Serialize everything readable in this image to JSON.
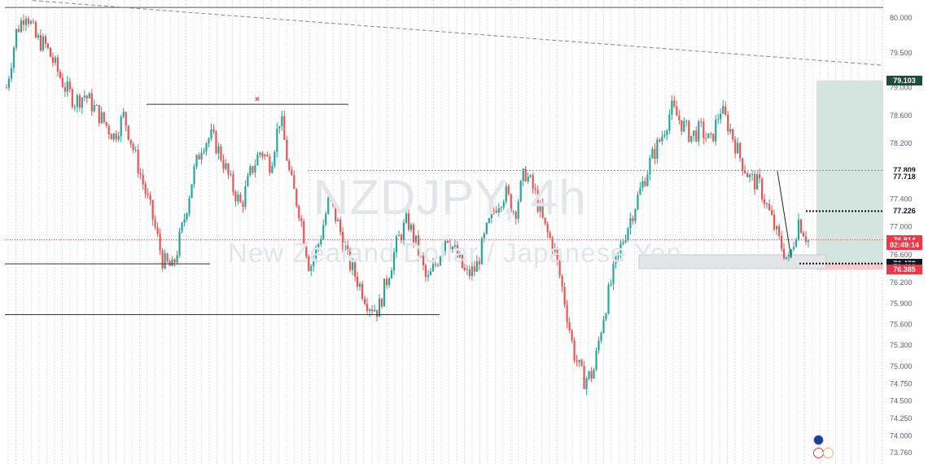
{
  "watermark": {
    "symbol": "NZDJPY, 4h",
    "description": "New Zealand Dollar / Japanese Yen"
  },
  "chart_data": {
    "type": "candlestick",
    "symbol": "NZDJPY",
    "timeframe": "4h",
    "ylim": [
      73.76,
      80.05
    ],
    "y_ticks": [
      "80.000",
      "79.500",
      "79.000",
      "78.600",
      "78.200",
      "77.800",
      "77.400",
      "77.000",
      "76.600",
      "76.200",
      "75.900",
      "75.600",
      "75.300",
      "75.000",
      "74.750",
      "74.500",
      "74.250",
      "74.000",
      "73.760"
    ],
    "price_path": [
      79.0,
      79.8,
      80.1,
      79.7,
      79.6,
      79.3,
      79.0,
      78.8,
      78.9,
      78.7,
      78.5,
      78.3,
      78.6,
      78.1,
      77.6,
      77.1,
      76.5,
      76.4,
      77.0,
      77.7,
      78.2,
      78.3,
      78.0,
      77.6,
      77.3,
      77.8,
      78.1,
      77.9,
      78.6,
      77.7,
      77.2,
      76.4,
      76.8,
      77.4,
      77.0,
      76.5,
      76.2,
      75.9,
      75.8,
      76.3,
      76.8,
      77.1,
      76.7,
      76.2,
      76.5,
      76.9,
      76.6,
      76.3,
      76.4,
      76.9,
      77.3,
      77.5,
      77.2,
      77.8,
      77.5,
      77.0,
      76.7,
      76.0,
      75.2,
      74.8,
      74.9,
      75.7,
      76.3,
      76.8,
      77.2,
      77.6,
      78.0,
      78.3,
      78.7,
      78.5,
      78.3,
      78.4,
      78.2,
      78.7,
      78.4,
      78.0,
      77.7,
      77.6,
      77.2,
      76.8,
      76.5,
      77.1,
      76.8
    ],
    "horizontal_lines": [
      {
        "price": 80.15,
        "style": "solid"
      },
      {
        "price": 78.76,
        "style": "solid"
      },
      {
        "price": 76.47,
        "style": "solid"
      },
      {
        "price": 75.74,
        "style": "solid"
      },
      {
        "price": 77.81,
        "style": "dotted"
      }
    ],
    "trend_line": {
      "from_price": 80.25,
      "to_price": 79.32,
      "style": "dashed"
    },
    "position_tool": {
      "target_price": 79.103,
      "entry_price": 76.474,
      "stop_price": 76.385
    },
    "support_zone": {
      "top_price": 76.6,
      "bottom_price": 76.4
    },
    "current_price": 76.814,
    "colors": {
      "up": "#26a69a",
      "down": "#ef5350",
      "profit_zone": "#d4e4de",
      "grid": "#dce3ec",
      "zone": "#e3e5e8"
    }
  },
  "price_labels": [
    {
      "price": 79.103,
      "text": "79.103",
      "bg": "#1e4d3a",
      "fg": "#ffffff"
    },
    {
      "price": 77.809,
      "text": "77.809",
      "bg": "#ffffff",
      "fg": "#131722"
    },
    {
      "price": 77.718,
      "text": "77.718",
      "bg": "#ffffff",
      "fg": "#131722"
    },
    {
      "price": 77.226,
      "text": "77.226",
      "bg": "#ffffff",
      "fg": "#131722"
    },
    {
      "price": 76.814,
      "text": "76.814",
      "bg": "#f23645",
      "fg": "#ffffff"
    },
    {
      "price": 76.745,
      "text": "02:49:14",
      "bg": "#f23645",
      "fg": "#ffffff"
    },
    {
      "price": 76.474,
      "text": "76.474",
      "bg": "#ffffff",
      "fg": "#131722"
    },
    {
      "price": 76.473,
      "text": "76.473",
      "bg": "#131722",
      "fg": "#ffffff"
    },
    {
      "price": 76.419,
      "text": "76.419",
      "bg": "#131722",
      "fg": "#ffffff"
    },
    {
      "price": 76.385,
      "text": "76.385",
      "bg": "#f23645",
      "fg": "#ffffff"
    }
  ]
}
